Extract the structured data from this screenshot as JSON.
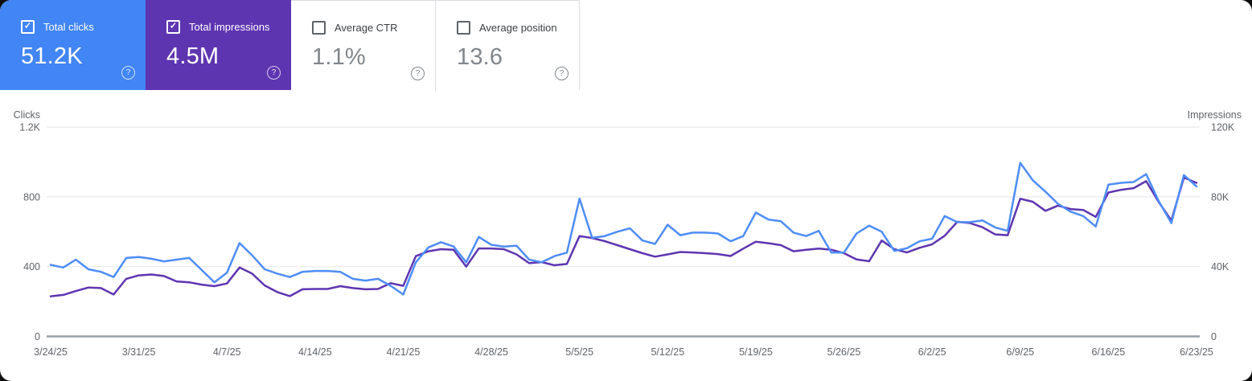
{
  "cards": [
    {
      "label": "Total clicks",
      "value": "51.2K",
      "selected": true,
      "checked": true,
      "bg": "#4285f4"
    },
    {
      "label": "Total impressions",
      "value": "4.5M",
      "selected": true,
      "checked": true,
      "bg": "#5e35b1"
    },
    {
      "label": "Average CTR",
      "value": "1.1%",
      "selected": false,
      "checked": false,
      "bg": "#ffffff"
    },
    {
      "label": "Average position",
      "value": "13.6",
      "selected": false,
      "checked": false,
      "bg": "#ffffff"
    }
  ],
  "icons": {
    "check_mark": "✓",
    "help_glyph": "?"
  },
  "chart_data": {
    "type": "line",
    "x_tick_labels": [
      "3/24/25",
      "3/31/25",
      "4/7/25",
      "4/14/25",
      "4/21/25",
      "4/28/25",
      "5/5/25",
      "5/12/25",
      "5/19/25",
      "5/26/25",
      "6/2/25",
      "6/9/25",
      "6/16/25",
      "6/23/25"
    ],
    "left_axis": {
      "title": "Clicks",
      "ticks": [
        "0",
        "400",
        "800",
        "1.2K"
      ],
      "max": 1200
    },
    "right_axis": {
      "title": "Impressions",
      "ticks": [
        "0",
        "40K",
        "80K",
        "120K"
      ],
      "max": 120000
    },
    "grid": "horizontal-only",
    "legend": "none",
    "series": [
      {
        "name": "Impressions",
        "axis": "right",
        "color": "#5e35b1",
        "values": [
          23000,
          23800,
          26000,
          28000,
          27700,
          24000,
          33000,
          35000,
          35500,
          34600,
          31500,
          31000,
          29700,
          28800,
          30300,
          39500,
          36000,
          29200,
          25400,
          23100,
          27000,
          27200,
          27200,
          28800,
          27700,
          27000,
          27200,
          30500,
          29000,
          46000,
          48800,
          50000,
          49700,
          40000,
          50400,
          50400,
          50000,
          47000,
          42000,
          42600,
          40800,
          41500,
          57500,
          56400,
          54600,
          52300,
          50000,
          47700,
          45700,
          47000,
          48400,
          48100,
          47700,
          47200,
          46100,
          50300,
          54300,
          53400,
          52300,
          48800,
          49700,
          50300,
          49700,
          47700,
          44100,
          43100,
          55000,
          50000,
          48100,
          50800,
          52800,
          57700,
          65700,
          65000,
          62600,
          58500,
          58000,
          78900,
          77200,
          72000,
          75000,
          73000,
          72500,
          68500,
          82500,
          84000,
          85000,
          89000,
          77000,
          66500,
          91000,
          88000
        ]
      },
      {
        "name": "Clicks",
        "axis": "left",
        "color": "#4e8df7",
        "values": [
          410,
          395,
          440,
          385,
          370,
          340,
          450,
          455,
          445,
          430,
          440,
          450,
          380,
          310,
          365,
          535,
          465,
          385,
          360,
          340,
          370,
          375,
          375,
          370,
          330,
          320,
          330,
          290,
          240,
          425,
          510,
          540,
          515,
          425,
          570,
          525,
          515,
          520,
          440,
          425,
          460,
          480,
          790,
          565,
          575,
          600,
          620,
          550,
          530,
          640,
          580,
          595,
          595,
          590,
          545,
          575,
          710,
          670,
          660,
          595,
          575,
          605,
          480,
          480,
          590,
          635,
          600,
          490,
          505,
          545,
          560,
          690,
          655,
          655,
          665,
          625,
          605,
          995,
          895,
          830,
          760,
          715,
          690,
          630,
          870,
          880,
          885,
          930,
          775,
          650,
          925,
          860
        ]
      }
    ],
    "colors": {
      "gridline": "#e8eaed",
      "axis_line": "#9aa0a6",
      "label_text": "#5f6368"
    }
  }
}
